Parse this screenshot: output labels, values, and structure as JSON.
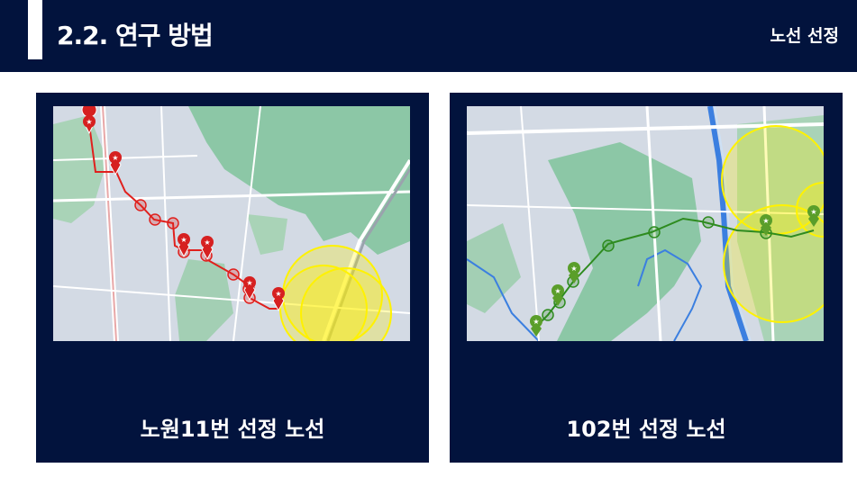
{
  "header": {
    "title": "2.2. 연구 방법",
    "section": "노선 선정"
  },
  "panels": [
    {
      "caption": "노원11번 선정 노선",
      "route_color": "#e0201d"
    },
    {
      "caption": "102번 선정 노선",
      "route_color": "#2e8b1f"
    }
  ],
  "colors": {
    "header_bg": "#02133d",
    "map_land": "#cfd8e3",
    "map_green": "#8cc7a6",
    "buffer_circle": "#fff200"
  }
}
